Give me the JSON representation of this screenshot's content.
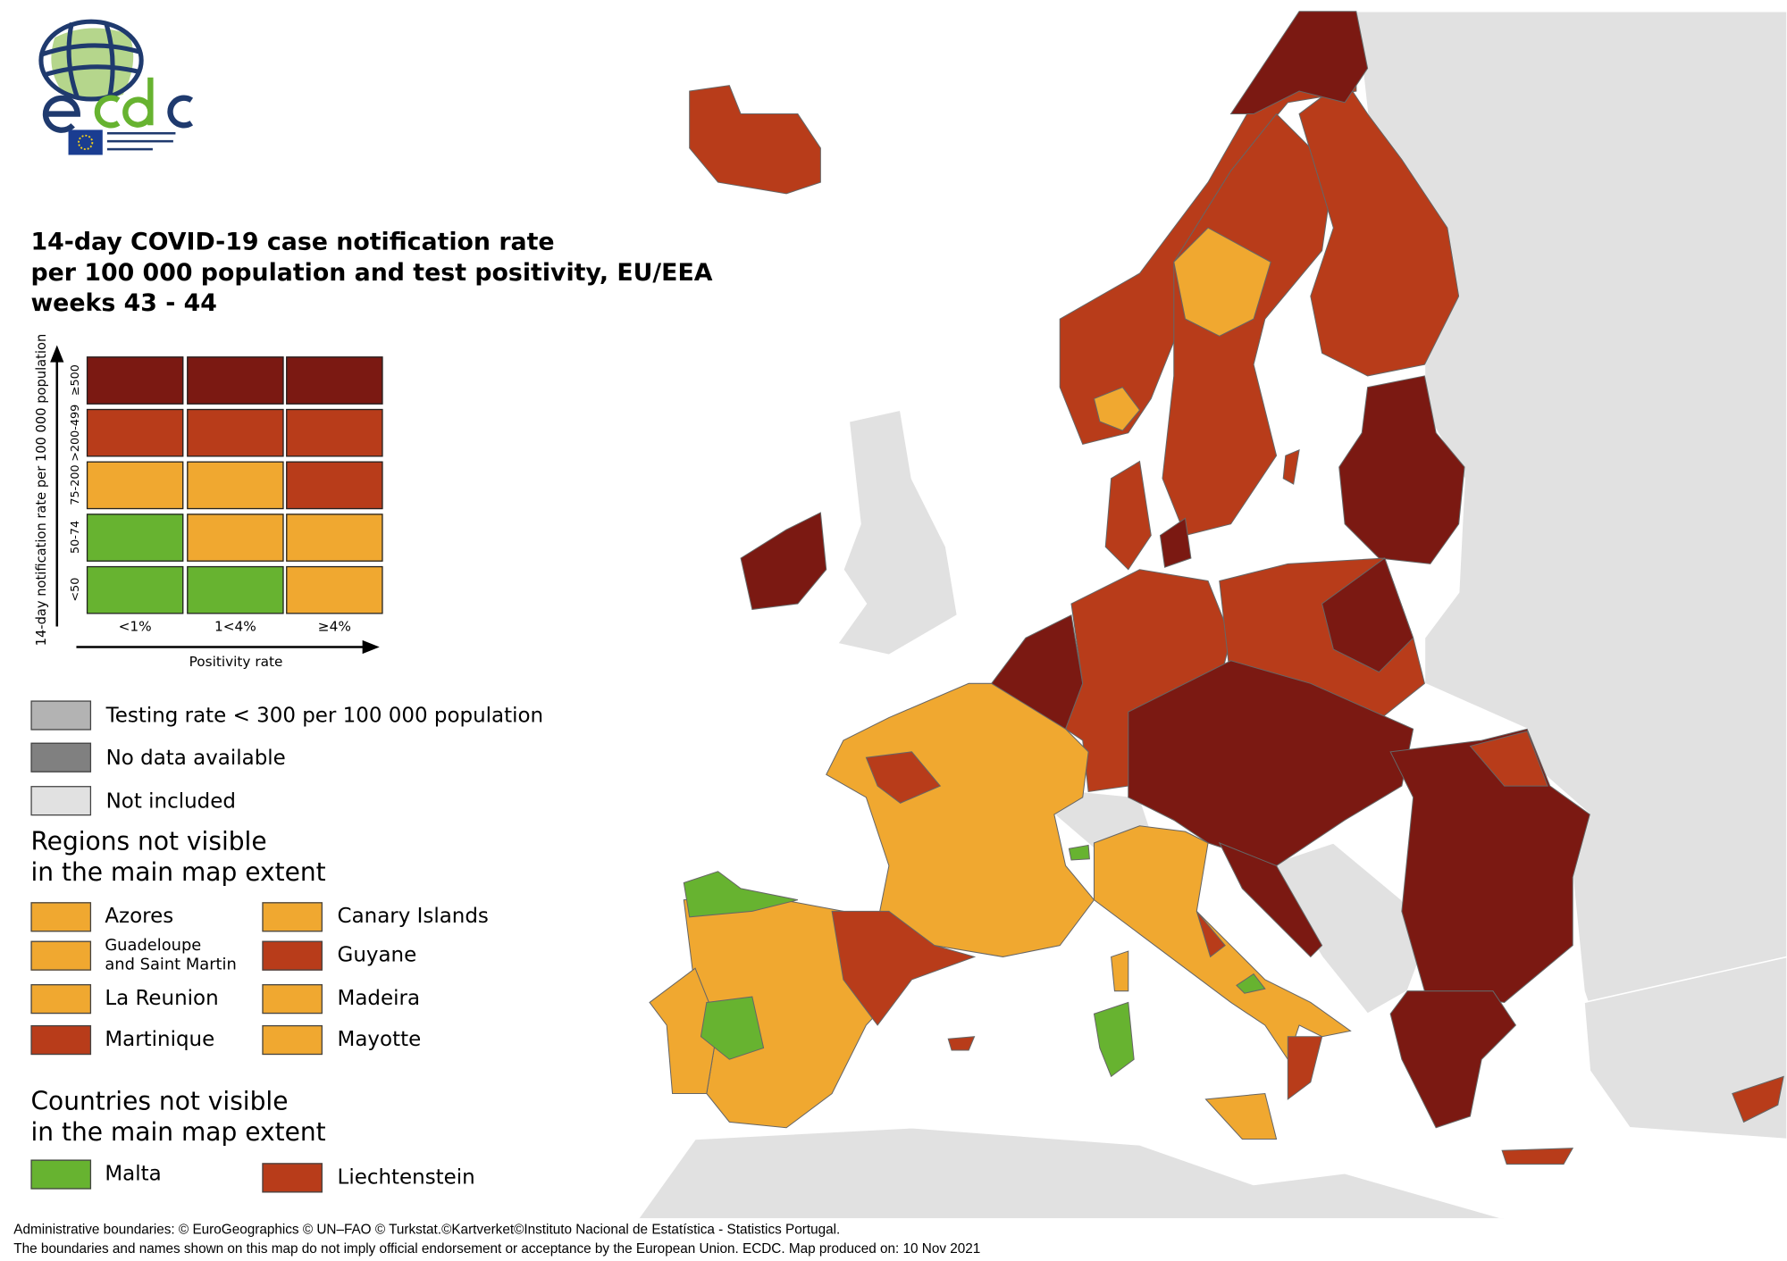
{
  "logo": {
    "text": "ecdc",
    "subtitle": "EUROPEAN CENTRE FOR DISEASE PREVENTION AND CONTROL"
  },
  "title": {
    "line1": "14-day COVID-19 case notification rate",
    "line2": "per 100 000 population and test positivity, EU/EEA",
    "line3": "weeks 43 - 44"
  },
  "colors": {
    "dark_red": "#7b1912",
    "red": "#b83c1a",
    "orange": "#f0a830",
    "green": "#67b330",
    "testing_low": "#b3b3b3",
    "no_data": "#808080",
    "not_included": "#e1e1e1"
  },
  "matrix": {
    "y_axis_label": "14-day notification rate per 100 000 population",
    "x_axis_label": "Positivity rate",
    "rows": [
      "≥500",
      ">200-499",
      "75-200",
      "50-74",
      "<50"
    ],
    "columns": [
      "<1%",
      "1<4%",
      "≥4%"
    ],
    "cells": [
      [
        "dark_red",
        "dark_red",
        "dark_red"
      ],
      [
        "red",
        "red",
        "red"
      ],
      [
        "orange",
        "orange",
        "red"
      ],
      [
        "green",
        "orange",
        "orange"
      ],
      [
        "green",
        "green",
        "orange"
      ]
    ]
  },
  "legend": {
    "testing_low": "Testing rate < 300 per 100 000 population",
    "no_data": "No data available",
    "not_included": "Not included"
  },
  "regions": {
    "heading1": "Regions not visible",
    "heading2": "in the main map extent",
    "items": [
      {
        "label": "Azores",
        "color": "orange"
      },
      {
        "label": "Canary Islands",
        "color": "orange"
      },
      {
        "label": "Guadeloupe",
        "label2": "and Saint Martin",
        "color": "orange"
      },
      {
        "label": "Guyane",
        "color": "red"
      },
      {
        "label": "La Reunion",
        "color": "orange"
      },
      {
        "label": "Madeira",
        "color": "orange"
      },
      {
        "label": "Martinique",
        "color": "red"
      },
      {
        "label": "Mayotte",
        "color": "orange"
      }
    ]
  },
  "countries": {
    "heading1": "Countries not visible",
    "heading2": "in the main map extent",
    "items": [
      {
        "label": "Malta",
        "color": "green"
      },
      {
        "label": "Liechtenstein",
        "color": "red"
      }
    ]
  },
  "footer": {
    "line1": "Administrative boundaries: © EuroGeographics © UN–FAO © Turkstat.©Kartverket©Instituto Nacional de Estatística - Statistics Portugal.",
    "line2": "The boundaries and names shown on this map do not imply official endorsement or acceptance by the European Union. ECDC. Map produced on: 10 Nov 2021"
  }
}
